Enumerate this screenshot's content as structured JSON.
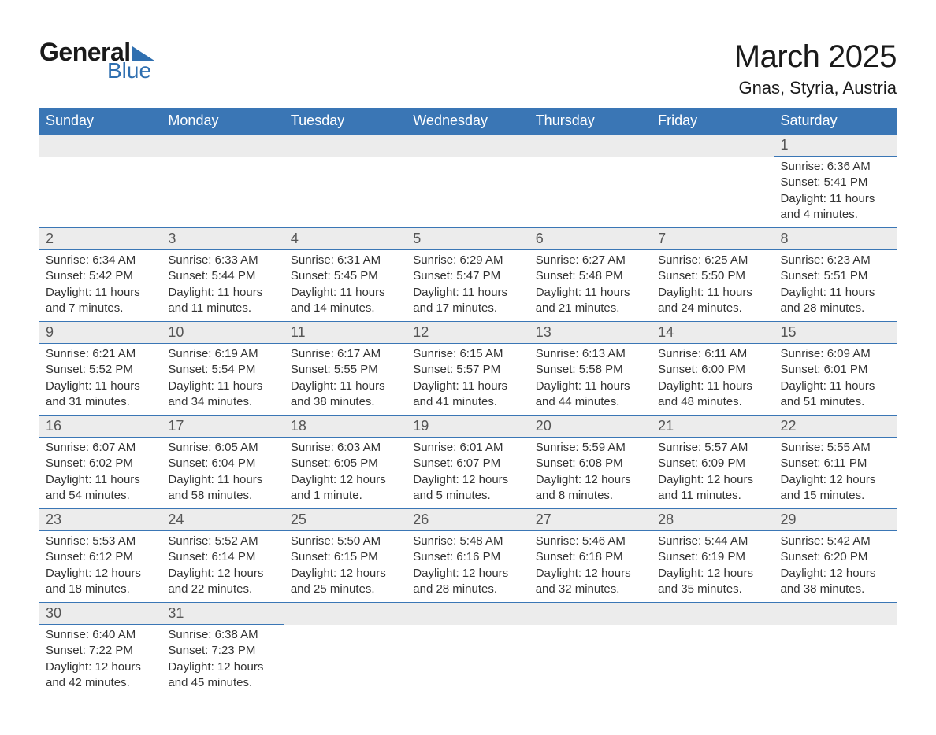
{
  "logo": {
    "general": "General",
    "blue": "Blue",
    "tri_color": "#2f6fb0"
  },
  "title": "March 2025",
  "location": "Gnas, Styria, Austria",
  "colors": {
    "header_bg": "#3a76b5",
    "header_text": "#ffffff",
    "daynum_bg": "#ececec",
    "row_border": "#3a76b5",
    "text": "#333333",
    "daynum_text": "#555555",
    "page_bg": "#ffffff"
  },
  "typography": {
    "title_fontsize": 40,
    "location_fontsize": 22,
    "header_fontsize": 18,
    "daynum_fontsize": 18,
    "data_fontsize": 15,
    "font_family": "Arial"
  },
  "days_of_week": [
    "Sunday",
    "Monday",
    "Tuesday",
    "Wednesday",
    "Thursday",
    "Friday",
    "Saturday"
  ],
  "weeks": [
    [
      null,
      null,
      null,
      null,
      null,
      null,
      {
        "n": "1",
        "sunrise": "Sunrise: 6:36 AM",
        "sunset": "Sunset: 5:41 PM",
        "dl1": "Daylight: 11 hours",
        "dl2": "and 4 minutes."
      }
    ],
    [
      {
        "n": "2",
        "sunrise": "Sunrise: 6:34 AM",
        "sunset": "Sunset: 5:42 PM",
        "dl1": "Daylight: 11 hours",
        "dl2": "and 7 minutes."
      },
      {
        "n": "3",
        "sunrise": "Sunrise: 6:33 AM",
        "sunset": "Sunset: 5:44 PM",
        "dl1": "Daylight: 11 hours",
        "dl2": "and 11 minutes."
      },
      {
        "n": "4",
        "sunrise": "Sunrise: 6:31 AM",
        "sunset": "Sunset: 5:45 PM",
        "dl1": "Daylight: 11 hours",
        "dl2": "and 14 minutes."
      },
      {
        "n": "5",
        "sunrise": "Sunrise: 6:29 AM",
        "sunset": "Sunset: 5:47 PM",
        "dl1": "Daylight: 11 hours",
        "dl2": "and 17 minutes."
      },
      {
        "n": "6",
        "sunrise": "Sunrise: 6:27 AM",
        "sunset": "Sunset: 5:48 PM",
        "dl1": "Daylight: 11 hours",
        "dl2": "and 21 minutes."
      },
      {
        "n": "7",
        "sunrise": "Sunrise: 6:25 AM",
        "sunset": "Sunset: 5:50 PM",
        "dl1": "Daylight: 11 hours",
        "dl2": "and 24 minutes."
      },
      {
        "n": "8",
        "sunrise": "Sunrise: 6:23 AM",
        "sunset": "Sunset: 5:51 PM",
        "dl1": "Daylight: 11 hours",
        "dl2": "and 28 minutes."
      }
    ],
    [
      {
        "n": "9",
        "sunrise": "Sunrise: 6:21 AM",
        "sunset": "Sunset: 5:52 PM",
        "dl1": "Daylight: 11 hours",
        "dl2": "and 31 minutes."
      },
      {
        "n": "10",
        "sunrise": "Sunrise: 6:19 AM",
        "sunset": "Sunset: 5:54 PM",
        "dl1": "Daylight: 11 hours",
        "dl2": "and 34 minutes."
      },
      {
        "n": "11",
        "sunrise": "Sunrise: 6:17 AM",
        "sunset": "Sunset: 5:55 PM",
        "dl1": "Daylight: 11 hours",
        "dl2": "and 38 minutes."
      },
      {
        "n": "12",
        "sunrise": "Sunrise: 6:15 AM",
        "sunset": "Sunset: 5:57 PM",
        "dl1": "Daylight: 11 hours",
        "dl2": "and 41 minutes."
      },
      {
        "n": "13",
        "sunrise": "Sunrise: 6:13 AM",
        "sunset": "Sunset: 5:58 PM",
        "dl1": "Daylight: 11 hours",
        "dl2": "and 44 minutes."
      },
      {
        "n": "14",
        "sunrise": "Sunrise: 6:11 AM",
        "sunset": "Sunset: 6:00 PM",
        "dl1": "Daylight: 11 hours",
        "dl2": "and 48 minutes."
      },
      {
        "n": "15",
        "sunrise": "Sunrise: 6:09 AM",
        "sunset": "Sunset: 6:01 PM",
        "dl1": "Daylight: 11 hours",
        "dl2": "and 51 minutes."
      }
    ],
    [
      {
        "n": "16",
        "sunrise": "Sunrise: 6:07 AM",
        "sunset": "Sunset: 6:02 PM",
        "dl1": "Daylight: 11 hours",
        "dl2": "and 54 minutes."
      },
      {
        "n": "17",
        "sunrise": "Sunrise: 6:05 AM",
        "sunset": "Sunset: 6:04 PM",
        "dl1": "Daylight: 11 hours",
        "dl2": "and 58 minutes."
      },
      {
        "n": "18",
        "sunrise": "Sunrise: 6:03 AM",
        "sunset": "Sunset: 6:05 PM",
        "dl1": "Daylight: 12 hours",
        "dl2": "and 1 minute."
      },
      {
        "n": "19",
        "sunrise": "Sunrise: 6:01 AM",
        "sunset": "Sunset: 6:07 PM",
        "dl1": "Daylight: 12 hours",
        "dl2": "and 5 minutes."
      },
      {
        "n": "20",
        "sunrise": "Sunrise: 5:59 AM",
        "sunset": "Sunset: 6:08 PM",
        "dl1": "Daylight: 12 hours",
        "dl2": "and 8 minutes."
      },
      {
        "n": "21",
        "sunrise": "Sunrise: 5:57 AM",
        "sunset": "Sunset: 6:09 PM",
        "dl1": "Daylight: 12 hours",
        "dl2": "and 11 minutes."
      },
      {
        "n": "22",
        "sunrise": "Sunrise: 5:55 AM",
        "sunset": "Sunset: 6:11 PM",
        "dl1": "Daylight: 12 hours",
        "dl2": "and 15 minutes."
      }
    ],
    [
      {
        "n": "23",
        "sunrise": "Sunrise: 5:53 AM",
        "sunset": "Sunset: 6:12 PM",
        "dl1": "Daylight: 12 hours",
        "dl2": "and 18 minutes."
      },
      {
        "n": "24",
        "sunrise": "Sunrise: 5:52 AM",
        "sunset": "Sunset: 6:14 PM",
        "dl1": "Daylight: 12 hours",
        "dl2": "and 22 minutes."
      },
      {
        "n": "25",
        "sunrise": "Sunrise: 5:50 AM",
        "sunset": "Sunset: 6:15 PM",
        "dl1": "Daylight: 12 hours",
        "dl2": "and 25 minutes."
      },
      {
        "n": "26",
        "sunrise": "Sunrise: 5:48 AM",
        "sunset": "Sunset: 6:16 PM",
        "dl1": "Daylight: 12 hours",
        "dl2": "and 28 minutes."
      },
      {
        "n": "27",
        "sunrise": "Sunrise: 5:46 AM",
        "sunset": "Sunset: 6:18 PM",
        "dl1": "Daylight: 12 hours",
        "dl2": "and 32 minutes."
      },
      {
        "n": "28",
        "sunrise": "Sunrise: 5:44 AM",
        "sunset": "Sunset: 6:19 PM",
        "dl1": "Daylight: 12 hours",
        "dl2": "and 35 minutes."
      },
      {
        "n": "29",
        "sunrise": "Sunrise: 5:42 AM",
        "sunset": "Sunset: 6:20 PM",
        "dl1": "Daylight: 12 hours",
        "dl2": "and 38 minutes."
      }
    ],
    [
      {
        "n": "30",
        "sunrise": "Sunrise: 6:40 AM",
        "sunset": "Sunset: 7:22 PM",
        "dl1": "Daylight: 12 hours",
        "dl2": "and 42 minutes."
      },
      {
        "n": "31",
        "sunrise": "Sunrise: 6:38 AM",
        "sunset": "Sunset: 7:23 PM",
        "dl1": "Daylight: 12 hours",
        "dl2": "and 45 minutes."
      },
      null,
      null,
      null,
      null,
      null
    ]
  ]
}
